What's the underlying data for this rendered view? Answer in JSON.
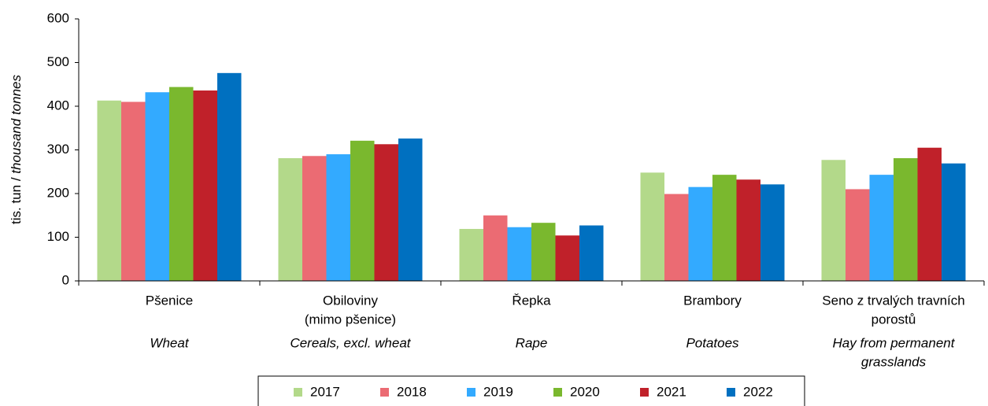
{
  "chart_data": {
    "type": "bar",
    "categories": [
      [
        "Pšenice"
      ],
      [
        "Obiloviny",
        "(mimo pšenice)"
      ],
      [
        "Řepka"
      ],
      [
        "Brambory"
      ],
      [
        "Seno z trvalých travních",
        "porostů"
      ]
    ],
    "categories_en": [
      [
        "Wheat"
      ],
      [
        "Cereals, excl. wheat"
      ],
      [
        "Rape"
      ],
      [
        "Potatoes"
      ],
      [
        "Hay from permanent",
        "grasslands"
      ]
    ],
    "y_label": [
      "tis. tun / ",
      "thousand tonnes"
    ],
    "ylim": [
      0,
      600
    ],
    "yticks": [
      0,
      100,
      200,
      300,
      400,
      500,
      600
    ],
    "series": [
      {
        "name": "2017",
        "color": "#b3d98a",
        "values": [
          413,
          281,
          119,
          248,
          277
        ]
      },
      {
        "name": "2018",
        "color": "#eb6b73",
        "values": [
          410,
          286,
          150,
          199,
          210
        ]
      },
      {
        "name": "2019",
        "color": "#33aaff",
        "values": [
          432,
          290,
          123,
          215,
          243
        ]
      },
      {
        "name": "2020",
        "color": "#7ab82e",
        "values": [
          444,
          321,
          133,
          243,
          281
        ]
      },
      {
        "name": "2021",
        "color": "#c0212a",
        "values": [
          436,
          313,
          104,
          232,
          305
        ]
      },
      {
        "name": "2022",
        "color": "#0070c0",
        "values": [
          476,
          326,
          127,
          221,
          269
        ]
      }
    ]
  }
}
